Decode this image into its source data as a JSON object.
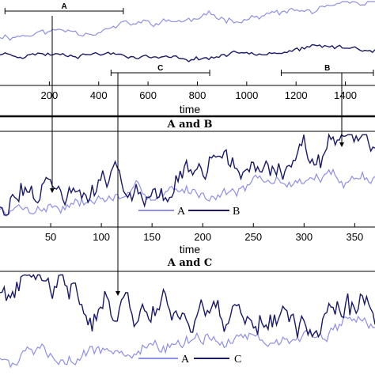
{
  "colors": {
    "A": "#8f8fe6",
    "B": "#1a1a66",
    "C": "#1a1a66",
    "axis": "#000000",
    "divider": "#000000"
  },
  "chart_data": [
    {
      "type": "line",
      "xlabel": "time",
      "xlim": [
        0,
        1520
      ],
      "ylim": [
        0,
        1
      ],
      "xticks": [
        200,
        400,
        600,
        800,
        1000,
        1200,
        1400
      ],
      "xtick_labels": [
        "200",
        "400",
        "600",
        "800",
        "1000",
        "1200",
        "1400"
      ],
      "segments": [
        {
          "label": "A",
          "x0": 20,
          "x1": 500
        },
        {
          "label": "C",
          "x0": 450,
          "x1": 850
        },
        {
          "label": "B",
          "x0": 1140,
          "x1": 1520
        }
      ],
      "series": [
        {
          "key": "A",
          "points": 150,
          "start": 0.55,
          "end": 0.92,
          "noise": 0.035,
          "seed": 11
        },
        {
          "key": "B",
          "points": 150,
          "start": 0.32,
          "end": 0.4,
          "noise": 0.022,
          "seed": 23,
          "dip": [
            0.5,
            -0.1
          ]
        }
      ]
    },
    {
      "type": "line",
      "title": "A and B",
      "xlabel": "time",
      "xlim": [
        0,
        370
      ],
      "ylim": [
        0,
        1
      ],
      "xticks": [
        50,
        100,
        150,
        200,
        250,
        300,
        350
      ],
      "xtick_labels": [
        "50",
        "100",
        "150",
        "200",
        "250",
        "300",
        "350"
      ],
      "legend": [
        "A",
        "B"
      ],
      "series": [
        {
          "key": "A",
          "points": 180,
          "start": 0.18,
          "end": 0.55,
          "noise": 0.05,
          "seed": 7
        },
        {
          "key": "B",
          "points": 180,
          "start": 0.3,
          "end": 0.78,
          "noise": 0.11,
          "seed": 31
        }
      ]
    },
    {
      "type": "line",
      "title": "A and C",
      "xlim": [
        0,
        370
      ],
      "ylim": [
        0,
        1
      ],
      "legend": [
        "A",
        "C"
      ],
      "series": [
        {
          "key": "A",
          "points": 180,
          "start": 0.15,
          "end": 0.45,
          "noise": 0.05,
          "seed": 5
        },
        {
          "key": "C",
          "points": 180,
          "start": 0.8,
          "end": 0.55,
          "noise": 0.12,
          "seed": 41
        }
      ]
    }
  ]
}
